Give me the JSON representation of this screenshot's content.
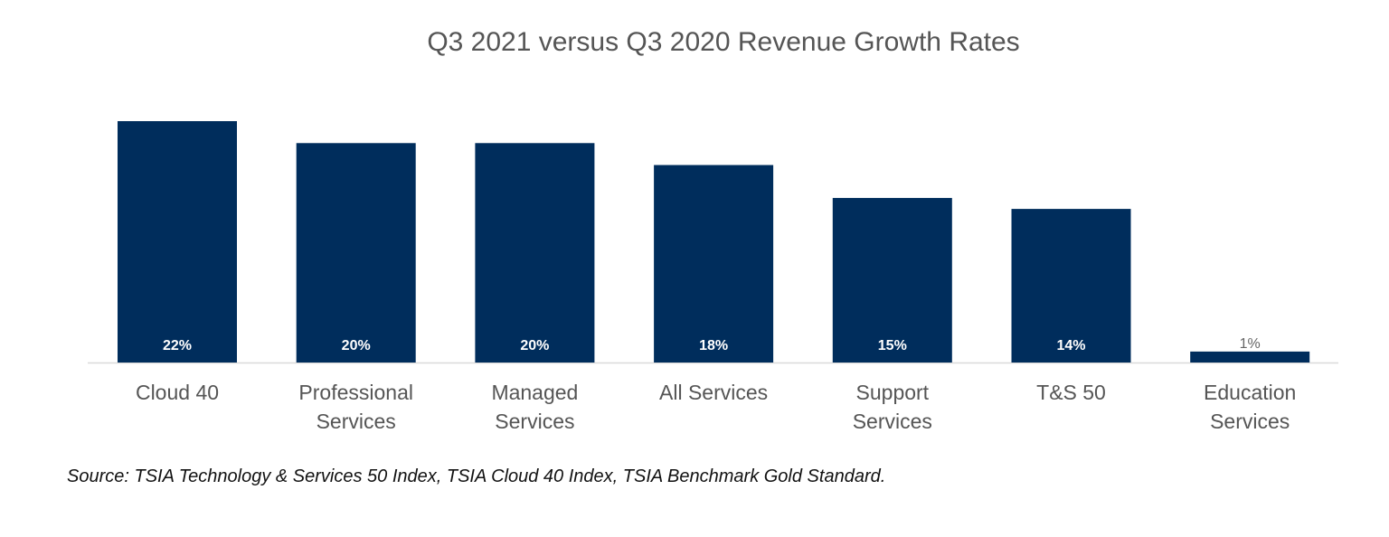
{
  "chart_data": {
    "type": "bar",
    "title": "Q3 2021 versus Q3 2020 Revenue Growth Rates",
    "categories": [
      [
        "Cloud 40"
      ],
      [
        "Professional",
        "Services"
      ],
      [
        "Managed",
        "Services"
      ],
      [
        "All Services"
      ],
      [
        "Support",
        "Services"
      ],
      [
        "T&S 50"
      ],
      [
        "Education",
        "Services"
      ]
    ],
    "values": [
      22,
      20,
      20,
      18,
      15,
      14,
      1
    ],
    "data_labels": [
      "22%",
      "20%",
      "20%",
      "18%",
      "15%",
      "14%",
      "1%"
    ],
    "unit": "%",
    "ylim": [
      0,
      22
    ],
    "grid": false,
    "bar_color": "#002d5c",
    "xlabel": "",
    "ylabel": ""
  },
  "source": "Source: TSIA Technology & Services 50 Index, TSIA Cloud 40 Index, TSIA Benchmark Gold Standard."
}
